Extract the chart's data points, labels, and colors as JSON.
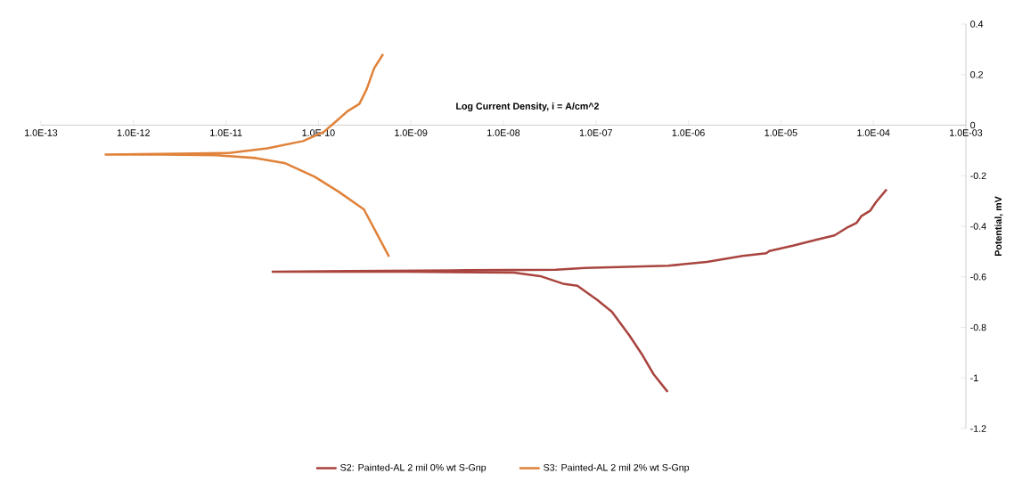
{
  "chart_data": {
    "type": "line",
    "xlabel": "Log Current Density, i = A/cm^2",
    "ylabel": "Potential, mV",
    "log": "x",
    "xlim": [
      1e-13,
      0.001
    ],
    "ylim": [
      -1.2,
      0.4
    ],
    "xticks": [
      {
        "value": 1e-13,
        "label": "1.0E-13"
      },
      {
        "value": 1e-12,
        "label": "1.0E-12"
      },
      {
        "value": 1e-11,
        "label": "1.0E-11"
      },
      {
        "value": 1e-10,
        "label": "1.0E-10"
      },
      {
        "value": 1e-09,
        "label": "1.0E-09"
      },
      {
        "value": 1e-08,
        "label": "1.0E-08"
      },
      {
        "value": 1e-07,
        "label": "1.0E-07"
      },
      {
        "value": 1e-06,
        "label": "1.0E-06"
      },
      {
        "value": 1e-05,
        "label": "1.0E-05"
      },
      {
        "value": 0.0001,
        "label": "1.0E-04"
      },
      {
        "value": 0.001,
        "label": "1.0E-03"
      }
    ],
    "yticks": [
      0.4,
      0.2,
      0,
      -0.2,
      -0.4,
      -0.6,
      -0.8,
      -1,
      -1.2
    ],
    "legend": "bottom",
    "marker": "none",
    "line_style": "solid",
    "series": [
      {
        "name": "S2: Painted-AL 2 mil 0% wt S-Gnp",
        "color": "#a9443f",
        "x": [
          5.97e-07,
          4.2e-07,
          3.1e-07,
          2.3e-07,
          1.49e-07,
          1.03e-07,
          6.3e-08,
          4.4e-08,
          2.5e-08,
          1.3e-08,
          9.1e-10,
          3.2e-11,
          2.06e-10,
          4e-09,
          3.7e-08,
          7.7e-08,
          6.05e-07,
          1.58e-06,
          3.85e-06,
          6.95e-06,
          7.5e-06,
          1.35e-05,
          2.44e-05,
          3.8e-05,
          5.1e-05,
          6.6e-05,
          7.4e-05,
          9.2e-05,
          0.000107,
          0.000139
        ],
        "values": [
          -1.055,
          -0.985,
          -0.903,
          -0.832,
          -0.738,
          -0.691,
          -0.635,
          -0.627,
          -0.597,
          -0.583,
          -0.58,
          -0.58,
          -0.577,
          -0.574,
          -0.572,
          -0.565,
          -0.556,
          -0.541,
          -0.517,
          -0.507,
          -0.498,
          -0.477,
          -0.453,
          -0.436,
          -0.407,
          -0.386,
          -0.36,
          -0.339,
          -0.304,
          -0.254
        ]
      },
      {
        "name": "S3: Painted-AL 2 mil 2% wt S-Gnp",
        "color": "#e0823a",
        "x": [
          5.8e-10,
          4e-10,
          3.1e-10,
          1.65e-10,
          9.1e-11,
          4.4e-11,
          2.1e-11,
          7.9e-12,
          2.1e-12,
          5e-13,
          3e-12,
          1.07e-11,
          2.8e-11,
          6.8e-11,
          1.14e-10,
          1.53e-10,
          2.06e-10,
          2.77e-10,
          3.33e-10,
          4e-10,
          5e-10
        ],
        "values": [
          -0.52,
          -0.409,
          -0.333,
          -0.263,
          -0.204,
          -0.151,
          -0.13,
          -0.119,
          -0.116,
          -0.116,
          -0.113,
          -0.11,
          -0.092,
          -0.063,
          -0.027,
          0.013,
          0.055,
          0.084,
          0.143,
          0.225,
          0.281
        ]
      }
    ]
  }
}
